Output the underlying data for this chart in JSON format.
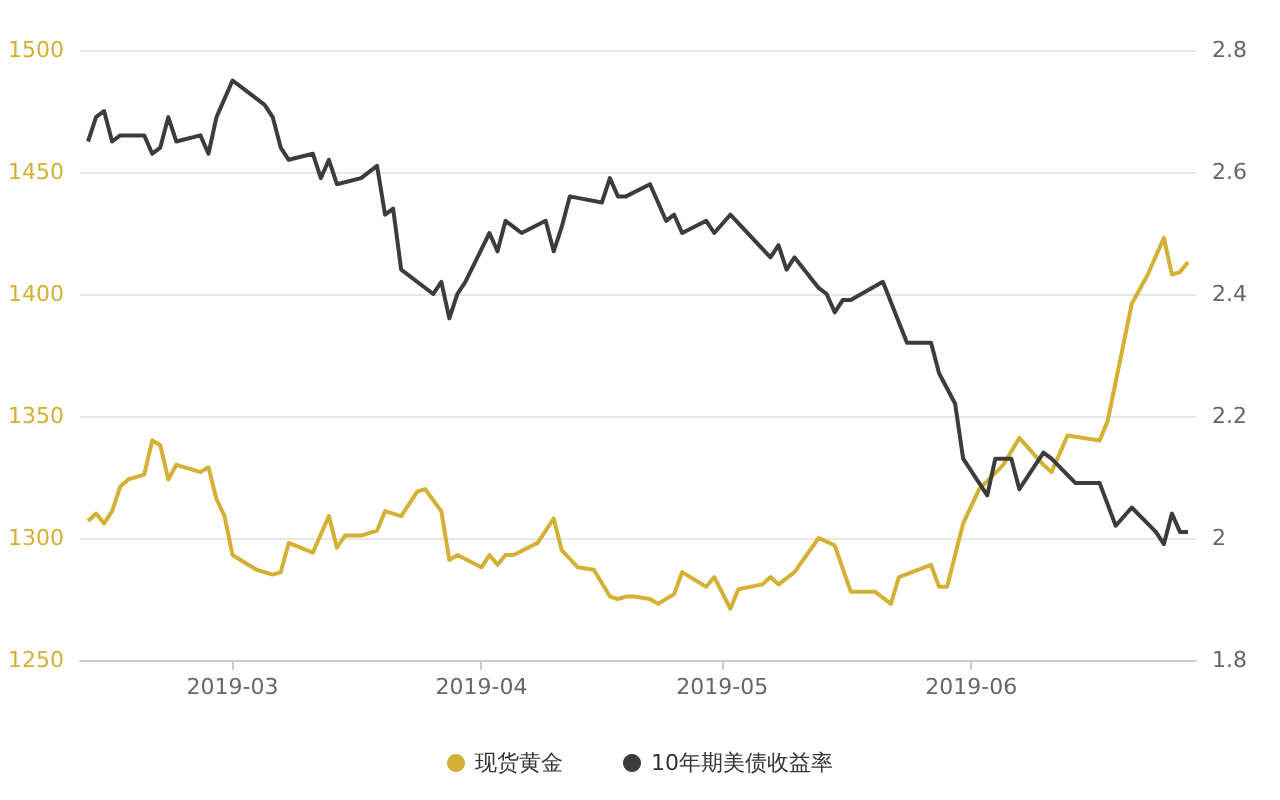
{
  "chart_data": {
    "type": "line",
    "marker": "none",
    "grid": "y",
    "legend": "bottom",
    "xlim": [
      "2019-02-10",
      "2019-06-29"
    ],
    "xticks": [
      "2019-03",
      "2019-04",
      "2019-05",
      "2019-06"
    ],
    "ylim": [
      1250,
      1500
    ],
    "yticks": [
      1250,
      1300,
      1350,
      1400,
      1450,
      1500
    ],
    "y2lim": [
      1.8,
      2.8
    ],
    "y2ticks": [
      1.8,
      2,
      2.2,
      2.4,
      2.6,
      2.8
    ],
    "series": [
      {
        "name": "现货黄金",
        "color": "#d4b034",
        "x": [
          "2019-02-11",
          "2019-02-12",
          "2019-02-13",
          "2019-02-14",
          "2019-02-15",
          "2019-02-16",
          "2019-02-18",
          "2019-02-19",
          "2019-02-20",
          "2019-02-21",
          "2019-02-22",
          "2019-02-24",
          "2019-02-25",
          "2019-02-26",
          "2019-02-27",
          "2019-02-28",
          "2019-03-01",
          "2019-03-02",
          "2019-03-04",
          "2019-03-06",
          "2019-03-07",
          "2019-03-08",
          "2019-03-11",
          "2019-03-13",
          "2019-03-14",
          "2019-03-15",
          "2019-03-17",
          "2019-03-19",
          "2019-03-20",
          "2019-03-22",
          "2019-03-24",
          "2019-03-25",
          "2019-03-27",
          "2019-03-28",
          "2019-03-29",
          "2019-04-01",
          "2019-04-02",
          "2019-04-03",
          "2019-04-04",
          "2019-04-05",
          "2019-04-08",
          "2019-04-10",
          "2019-04-11",
          "2019-04-13",
          "2019-04-15",
          "2019-04-17",
          "2019-04-18",
          "2019-04-19",
          "2019-04-20",
          "2019-04-22",
          "2019-04-23",
          "2019-04-25",
          "2019-04-26",
          "2019-04-29",
          "2019-04-30",
          "2019-05-02",
          "2019-05-03",
          "2019-05-06",
          "2019-05-07",
          "2019-05-08",
          "2019-05-10",
          "2019-05-13",
          "2019-05-15",
          "2019-05-17",
          "2019-05-20",
          "2019-05-22",
          "2019-05-23",
          "2019-05-27",
          "2019-05-28",
          "2019-05-29",
          "2019-05-31",
          "2019-06-02",
          "2019-06-05",
          "2019-06-07",
          "2019-06-10",
          "2019-06-11",
          "2019-06-13",
          "2019-06-17",
          "2019-06-18",
          "2019-06-21",
          "2019-06-23",
          "2019-06-25",
          "2019-06-26",
          "2019-06-27",
          "2019-06-28"
        ],
        "values": [
          1307,
          1310,
          1306,
          1311,
          1321,
          1324,
          1326,
          1340,
          1338,
          1324,
          1330,
          1328,
          1327,
          1329,
          1316,
          1309,
          1293,
          1291,
          1287,
          1285,
          1286,
          1298,
          1294,
          1309,
          1296,
          1301,
          1301,
          1303,
          1311,
          1309,
          1319,
          1320,
          1311,
          1291,
          1293,
          1288,
          1293,
          1289,
          1293,
          1293,
          1298,
          1308,
          1295,
          1288,
          1287,
          1276,
          1275,
          1276,
          1276,
          1275,
          1273,
          1277,
          1286,
          1280,
          1284,
          1271,
          1279,
          1281,
          1284,
          1281,
          1286,
          1300,
          1297,
          1278,
          1278,
          1273,
          1284,
          1289,
          1280,
          1280,
          1306,
          1320,
          1330,
          1341,
          1330,
          1327,
          1342,
          1340,
          1348,
          1396,
          1408,
          1423,
          1408,
          1409,
          1413
        ]
      },
      {
        "name": "10年期美债收益率",
        "color": "#3c3c3c",
        "axis": "y2",
        "x": [
          "2019-02-11",
          "2019-02-12",
          "2019-02-13",
          "2019-02-14",
          "2019-02-15",
          "2019-02-18",
          "2019-02-19",
          "2019-02-20",
          "2019-02-21",
          "2019-02-22",
          "2019-02-25",
          "2019-02-26",
          "2019-02-27",
          "2019-03-01",
          "2019-03-03",
          "2019-03-05",
          "2019-03-06",
          "2019-03-07",
          "2019-03-08",
          "2019-03-11",
          "2019-03-12",
          "2019-03-13",
          "2019-03-14",
          "2019-03-17",
          "2019-03-19",
          "2019-03-20",
          "2019-03-21",
          "2019-03-22",
          "2019-03-26",
          "2019-03-27",
          "2019-03-28",
          "2019-03-29",
          "2019-03-30",
          "2019-04-02",
          "2019-04-03",
          "2019-04-04",
          "2019-04-05",
          "2019-04-06",
          "2019-04-09",
          "2019-04-10",
          "2019-04-11",
          "2019-04-12",
          "2019-04-16",
          "2019-04-17",
          "2019-04-18",
          "2019-04-19",
          "2019-04-22",
          "2019-04-24",
          "2019-04-25",
          "2019-04-26",
          "2019-04-29",
          "2019-04-30",
          "2019-05-02",
          "2019-05-07",
          "2019-05-08",
          "2019-05-09",
          "2019-05-10",
          "2019-05-13",
          "2019-05-14",
          "2019-05-15",
          "2019-05-16",
          "2019-05-17",
          "2019-05-21",
          "2019-05-24",
          "2019-05-27",
          "2019-05-28",
          "2019-05-30",
          "2019-05-31",
          "2019-06-03",
          "2019-06-04",
          "2019-06-06",
          "2019-06-07",
          "2019-06-10",
          "2019-06-11",
          "2019-06-14",
          "2019-06-17",
          "2019-06-19",
          "2019-06-21",
          "2019-06-24",
          "2019-06-25",
          "2019-06-26",
          "2019-06-27",
          "2019-06-28"
        ],
        "values": [
          2.65,
          2.69,
          2.7,
          2.65,
          2.66,
          2.66,
          2.63,
          2.64,
          2.69,
          2.65,
          2.66,
          2.63,
          2.69,
          2.75,
          2.73,
          2.71,
          2.69,
          2.64,
          2.62,
          2.63,
          2.59,
          2.62,
          2.58,
          2.59,
          2.61,
          2.53,
          2.54,
          2.44,
          2.4,
          2.42,
          2.36,
          2.4,
          2.42,
          2.5,
          2.47,
          2.52,
          2.51,
          2.5,
          2.52,
          2.47,
          2.51,
          2.56,
          2.55,
          2.59,
          2.56,
          2.56,
          2.58,
          2.52,
          2.53,
          2.5,
          2.52,
          2.5,
          2.53,
          2.46,
          2.48,
          2.44,
          2.46,
          2.41,
          2.4,
          2.37,
          2.39,
          2.39,
          2.42,
          2.32,
          2.32,
          2.27,
          2.22,
          2.13,
          2.07,
          2.13,
          2.13,
          2.08,
          2.14,
          2.13,
          2.09,
          2.09,
          2.02,
          2.05,
          2.01,
          1.99,
          2.04,
          2.01,
          2.01
        ]
      }
    ]
  }
}
